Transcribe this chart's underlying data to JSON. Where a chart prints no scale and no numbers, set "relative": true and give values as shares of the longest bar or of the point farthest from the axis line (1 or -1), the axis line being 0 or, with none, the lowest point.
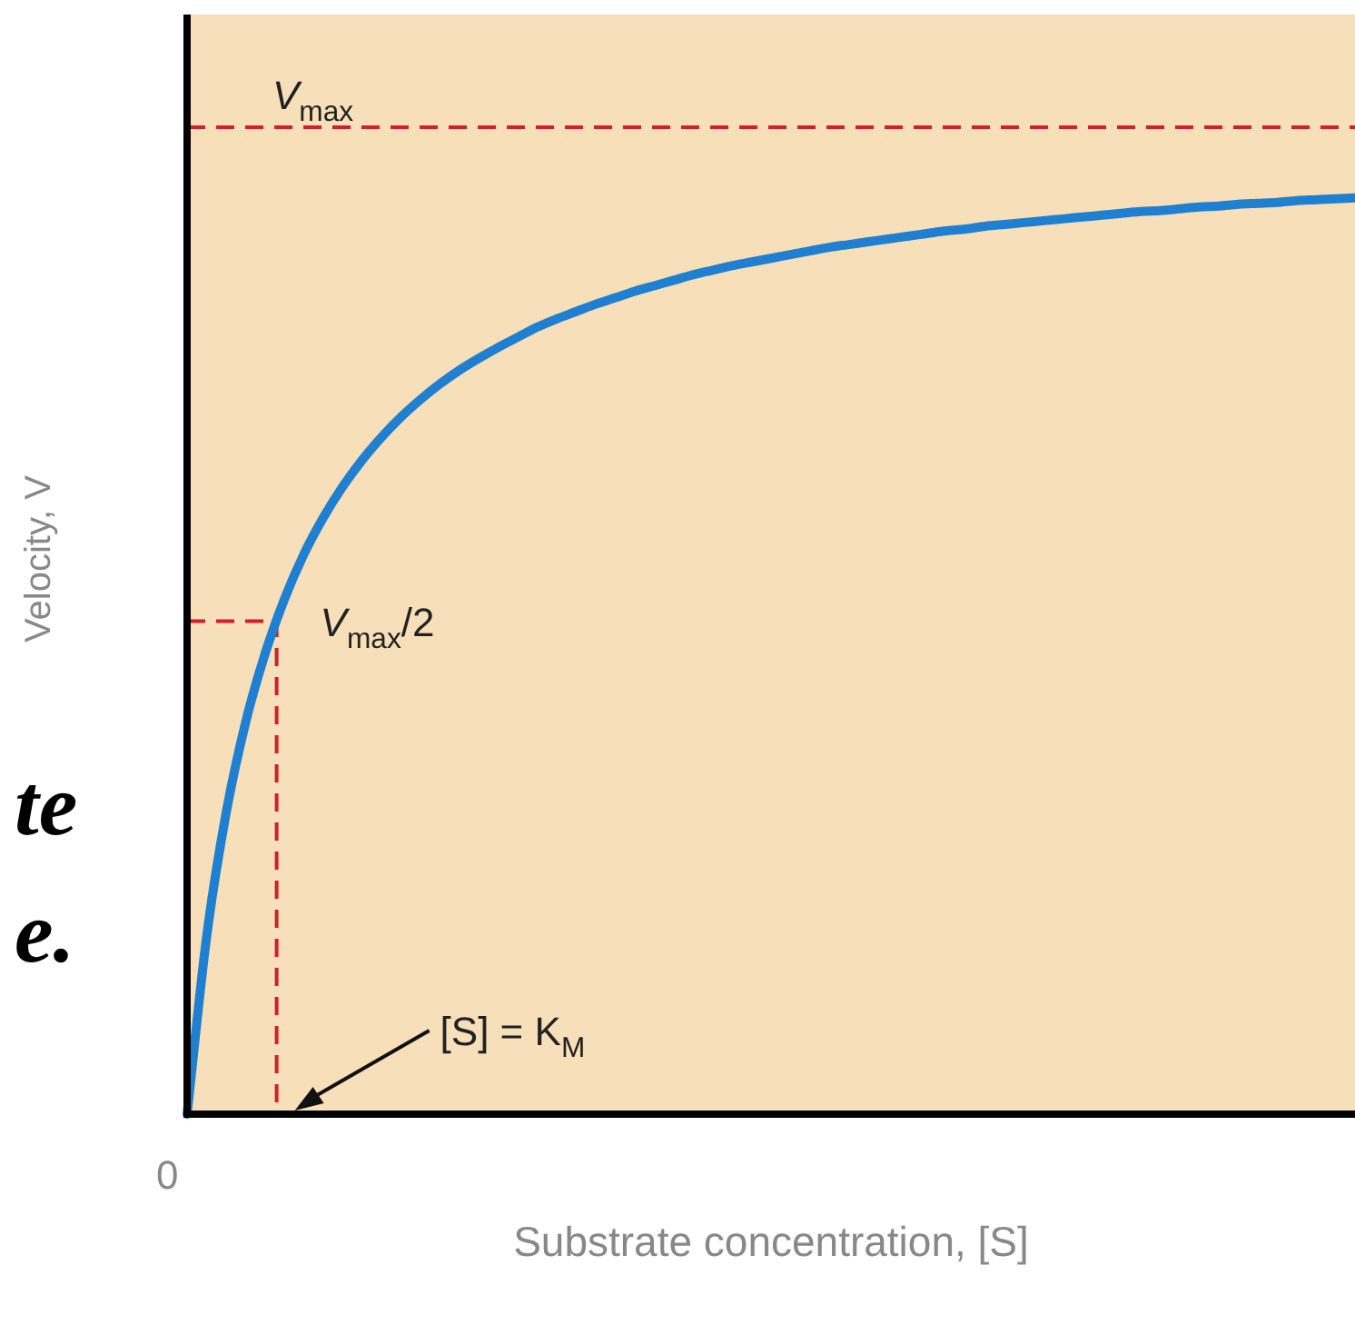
{
  "chart_data": {
    "type": "line",
    "relative": true,
    "xlabel": "Substrate concentration, [S]",
    "ylabel": "Velocity, V",
    "categories": [
      null,
      null,
      null,
      null,
      null,
      null,
      null,
      null,
      null,
      null,
      null,
      null,
      null,
      null,
      null,
      null,
      null,
      null,
      null,
      null,
      null,
      null,
      null,
      null,
      null,
      null,
      null,
      null,
      null,
      null,
      null,
      null,
      null,
      null,
      null,
      null,
      null,
      null,
      null,
      null,
      null,
      null,
      null,
      null,
      null,
      null,
      null,
      null,
      null,
      null,
      null,
      null,
      null,
      null,
      null,
      null,
      null,
      null,
      null,
      null,
      null
    ],
    "series": [
      {
        "color": "#1f7fd0",
        "values": [
          0,
          0.193,
          0.328,
          0.427,
          0.502,
          0.562,
          0.611,
          0.651,
          0.685,
          0.714,
          0.739,
          0.761,
          0.78,
          0.797,
          0.812,
          0.825,
          0.837,
          0.848,
          0.859,
          0.868,
          0.876,
          0.884,
          0.891,
          0.898,
          0.904,
          0.91,
          0.916,
          0.921,
          0.926,
          0.93,
          0.934,
          0.938,
          0.942,
          0.946,
          0.949,
          0.952,
          0.955,
          0.958,
          0.961,
          0.964,
          0.966,
          0.969,
          0.971,
          0.973,
          0.975,
          0.977,
          0.979,
          0.981,
          0.983,
          0.985,
          0.986,
          0.988,
          0.99,
          0.991,
          0.993,
          0.994,
          0.995,
          0.997,
          0.998,
          0.999,
          1.0
        ]
      }
    ],
    "ref_lines": [
      {
        "axis": "y",
        "value": 1.077,
        "label": "V$_{max}$",
        "color": "#d0202a",
        "line_style": "dashed"
      },
      {
        "axis": "y",
        "value": 0.538,
        "label": "V$_{max}$/2",
        "color": "#d0202a",
        "line_style": "dashed"
      }
    ],
    "annotations": [
      "[S] = K$_{M}$",
      "te",
      "e.",
      "0"
    ],
    "legend": false,
    "marker": "none",
    "line_style": "solid"
  }
}
